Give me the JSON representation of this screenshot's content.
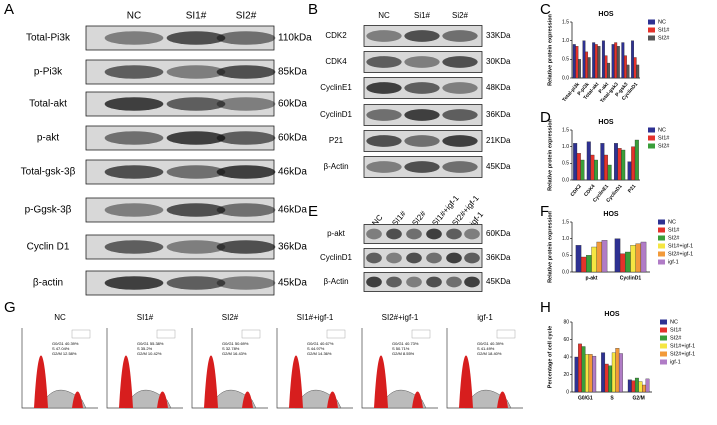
{
  "panel_labels": [
    "A",
    "B",
    "C",
    "D",
    "E",
    "F",
    "G",
    "H"
  ],
  "blot_A": {
    "lanes": [
      "NC",
      "SI1#",
      "SI2#"
    ],
    "rows": [
      {
        "label": "Total-Pi3k",
        "size": "110kDa"
      },
      {
        "label": "p-Pi3k",
        "size": "85kDa"
      },
      {
        "label": "Total-akt",
        "size": "60kDa"
      },
      {
        "label": "p-akt",
        "size": "60kDa"
      },
      {
        "label": "Total-gsk-3β",
        "size": "46kDa"
      },
      {
        "label": "p-Ggsk-3β",
        "size": "46kDa"
      },
      {
        "label": "Cyclin D1",
        "size": "36kDa"
      },
      {
        "label": "β-actin",
        "size": "45kDa"
      }
    ]
  },
  "blot_B": {
    "lanes": [
      "NC",
      "Si1#",
      "Si2#"
    ],
    "rows": [
      {
        "label": "CDK2",
        "size": "33KDa"
      },
      {
        "label": "CDK4",
        "size": "30KDa"
      },
      {
        "label": "CyclinE1",
        "size": "48KDa"
      },
      {
        "label": "CyclinD1",
        "size": "36KDa"
      },
      {
        "label": "P21",
        "size": "21KDa"
      },
      {
        "label": "β-Actin",
        "size": "45KDa"
      }
    ]
  },
  "blot_E": {
    "lanes": [
      "NC",
      "SI1#",
      "SI2#",
      "SI1#+igf-1",
      "SI2#+igf-1",
      "igf-1"
    ],
    "rows": [
      {
        "label": "p-akt",
        "size": "60KDa"
      },
      {
        "label": "CyclinD1",
        "size": "36KDa"
      },
      {
        "label": "β-Actin",
        "size": "45KDa"
      }
    ]
  },
  "chart_data": [
    {
      "type": "bar",
      "title": "HOS",
      "ylabel": "Relative protein expression",
      "categories": [
        "Total-pi3k",
        "P-pi3k",
        "Total-akt",
        "P-akt",
        "Total-gsk3",
        "P-gsk3",
        "CyclinD1"
      ],
      "series": [
        {
          "name": "NC",
          "color": "#2e3192",
          "values": [
            0.9,
            1.0,
            0.95,
            1.0,
            0.9,
            0.95,
            1.0
          ]
        },
        {
          "name": "SI1#",
          "color": "#e4322b",
          "values": [
            0.85,
            0.7,
            0.9,
            0.6,
            0.95,
            0.6,
            0.55
          ]
        },
        {
          "name": "SI2#",
          "color": "#555555",
          "values": [
            0.5,
            0.55,
            0.85,
            0.4,
            0.85,
            0.35,
            0.35
          ]
        }
      ],
      "ylim": [
        0,
        1.5
      ],
      "yticks": [
        {
          "value": 0,
          "label": "0.0"
        },
        0.5,
        {
          "value": 1,
          "label": "1.0"
        },
        1.5
      ]
    },
    {
      "type": "bar",
      "title": "HOS",
      "ylabel": "Relative protein expression",
      "categories": [
        "CDK2",
        "CDK4",
        "CyclinE1",
        "CyclinD1",
        "P21"
      ],
      "series": [
        {
          "name": "NC",
          "color": "#2e3192",
          "values": [
            1.1,
            1.15,
            1.1,
            1.1,
            0.55
          ]
        },
        {
          "name": "SI1#",
          "color": "#e4322b",
          "values": [
            0.8,
            0.75,
            0.75,
            0.95,
            1.0
          ]
        },
        {
          "name": "SI2#",
          "color": "#3a9e3a",
          "values": [
            0.6,
            0.6,
            0.45,
            0.9,
            1.2
          ]
        }
      ],
      "ylim": [
        0,
        1.5
      ],
      "yticks": [
        {
          "value": 0,
          "label": "0.0"
        },
        0.5,
        {
          "value": 1,
          "label": "1.0"
        },
        1.5
      ]
    },
    {
      "type": "bar",
      "title": "HOS",
      "ylabel": "Relative protein expression",
      "categories": [
        "p-akt",
        "CyclinD1"
      ],
      "series": [
        {
          "name": "NC",
          "color": "#2e3192",
          "values": [
            0.8,
            1.0
          ]
        },
        {
          "name": "SI1#",
          "color": "#e4322b",
          "values": [
            0.45,
            0.55
          ]
        },
        {
          "name": "SI2#",
          "color": "#3a9e3a",
          "values": [
            0.5,
            0.6
          ]
        },
        {
          "name": "SI1#+igf-1",
          "color": "#f5e642",
          "values": [
            0.75,
            0.8
          ]
        },
        {
          "name": "SI2#+igf-1",
          "color": "#f29a3a",
          "values": [
            0.9,
            0.85
          ]
        },
        {
          "name": "igf-1",
          "color": "#b07cc6",
          "values": [
            0.95,
            0.9
          ]
        }
      ],
      "ylim": [
        0,
        1.5
      ],
      "yticks": [
        {
          "value": 0,
          "label": "0.0"
        },
        0.5,
        {
          "value": 1,
          "label": "1.0"
        },
        1.5
      ]
    },
    {
      "type": "bar",
      "title": "HOS",
      "ylabel": "Percentage of cell cycle",
      "categories": [
        "G0/G1",
        "S",
        "G2/M"
      ],
      "series": [
        {
          "name": "NC",
          "color": "#2e3192",
          "values": [
            40,
            45,
            14
          ]
        },
        {
          "name": "SI1#",
          "color": "#e4322b",
          "values": [
            55,
            32,
            13
          ]
        },
        {
          "name": "SI2#",
          "color": "#3a9e3a",
          "values": [
            52,
            30,
            16
          ]
        },
        {
          "name": "SI1#+igf-1",
          "color": "#f5e642",
          "values": [
            43,
            45,
            12
          ]
        },
        {
          "name": "SI2#+igf-1",
          "color": "#f29a3a",
          "values": [
            43,
            50,
            8
          ]
        },
        {
          "name": "igf-1",
          "color": "#b07cc6",
          "values": [
            41,
            44,
            15
          ]
        }
      ],
      "ylim": [
        0,
        80
      ],
      "yticks": [
        0,
        20,
        40,
        60,
        80
      ]
    }
  ],
  "flow": {
    "panels": [
      {
        "title": "NC",
        "stats": [
          "G0/G1 40.39%",
          "S 47.04%",
          "G2/M 12.58%"
        ]
      },
      {
        "title": "SI1#",
        "stats": [
          "G0/G1 55.38%",
          "S 35.2%",
          "G2/M 10.42%"
        ]
      },
      {
        "title": "SI2#",
        "stats": [
          "G0/G1 50.69%",
          "S 32.78%",
          "G2/M 16.43%"
        ]
      },
      {
        "title": "SI1#+igf-1",
        "stats": [
          "G0/G1 40.67%",
          "S 44.97%",
          "G2/M 14.36%"
        ]
      },
      {
        "title": "SI2#+igf-1",
        "stats": [
          "G0/G1 40.73%",
          "S 50.71%",
          "G2/M 8.55%"
        ]
      },
      {
        "title": "igf-1",
        "stats": [
          "G0/G1 40.39%",
          "S 41.49%",
          "G2/M 18.40%"
        ]
      }
    ]
  }
}
